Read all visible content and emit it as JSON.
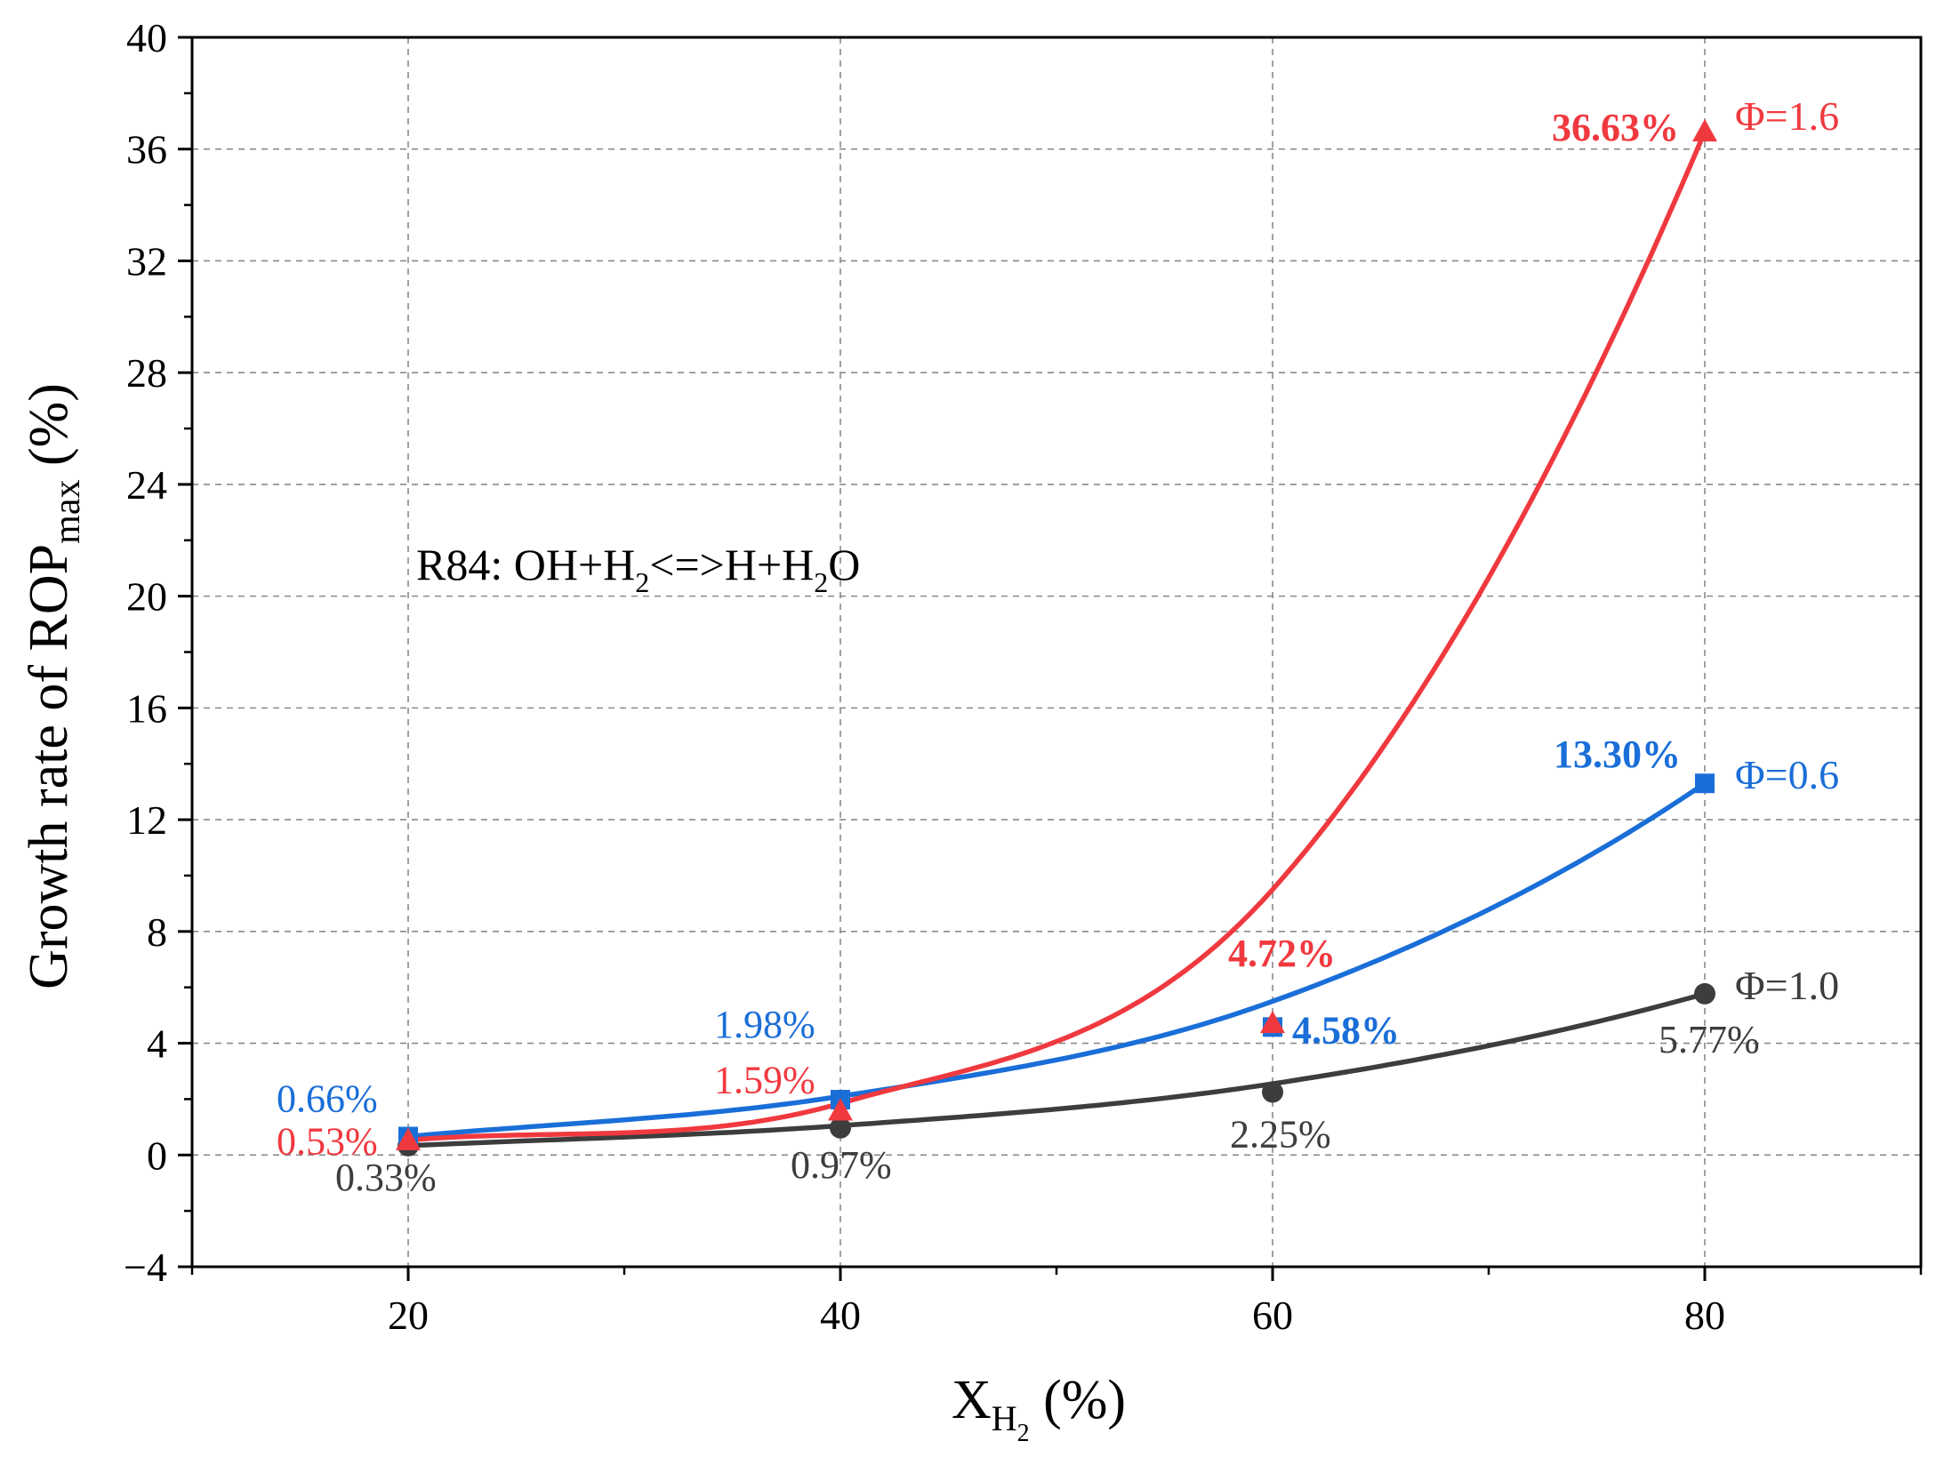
{
  "chart_data": {
    "type": "line",
    "title": "",
    "annotation": {
      "parts": [
        "R84: OH+H",
        "2",
        "<=>H+H",
        "2",
        "O"
      ]
    },
    "xlabel": {
      "main": "X",
      "sub": "H",
      "subsub": "2",
      "unit": " (%)"
    },
    "ylabel": {
      "main": "Growth rate of ROP",
      "sub": "max",
      "unit": " (%)"
    },
    "xlim": [
      10,
      90
    ],
    "ylim": [
      -4,
      40
    ],
    "xticks": [
      20,
      40,
      60,
      80
    ],
    "yticks": [
      -4,
      0,
      4,
      8,
      12,
      16,
      20,
      24,
      28,
      32,
      36,
      40
    ],
    "grid": true,
    "x": [
      20,
      40,
      60,
      80
    ],
    "series": [
      {
        "name": "Φ=1.0",
        "color": "#3d3d3d",
        "marker": "circle",
        "values": [
          0.33,
          0.97,
          2.25,
          5.77
        ],
        "labels": [
          "0.33%",
          "0.97%",
          "2.25%",
          "5.77%"
        ],
        "bold_labels": [
          false,
          false,
          false,
          false
        ],
        "fit": [
          0.33,
          1.05,
          2.55,
          5.77
        ]
      },
      {
        "name": "Φ=0.6",
        "color": "#1a6ed8",
        "marker": "square",
        "values": [
          0.66,
          1.98,
          4.58,
          13.3
        ],
        "labels": [
          "0.66%",
          "1.98%",
          "4.58%",
          "13.30%"
        ],
        "bold_labels": [
          false,
          false,
          true,
          true
        ],
        "fit": [
          0.66,
          2.1,
          5.5,
          13.3
        ]
      },
      {
        "name": "Φ=1.6",
        "color": "#f0393f",
        "marker": "triangle",
        "values": [
          0.53,
          1.59,
          4.72,
          36.63
        ],
        "labels": [
          "0.53%",
          "1.59%",
          "4.72%",
          "36.63%"
        ],
        "bold_labels": [
          false,
          false,
          true,
          true
        ],
        "fit": [
          0.53,
          1.85,
          9.5,
          36.63
        ]
      }
    ]
  }
}
